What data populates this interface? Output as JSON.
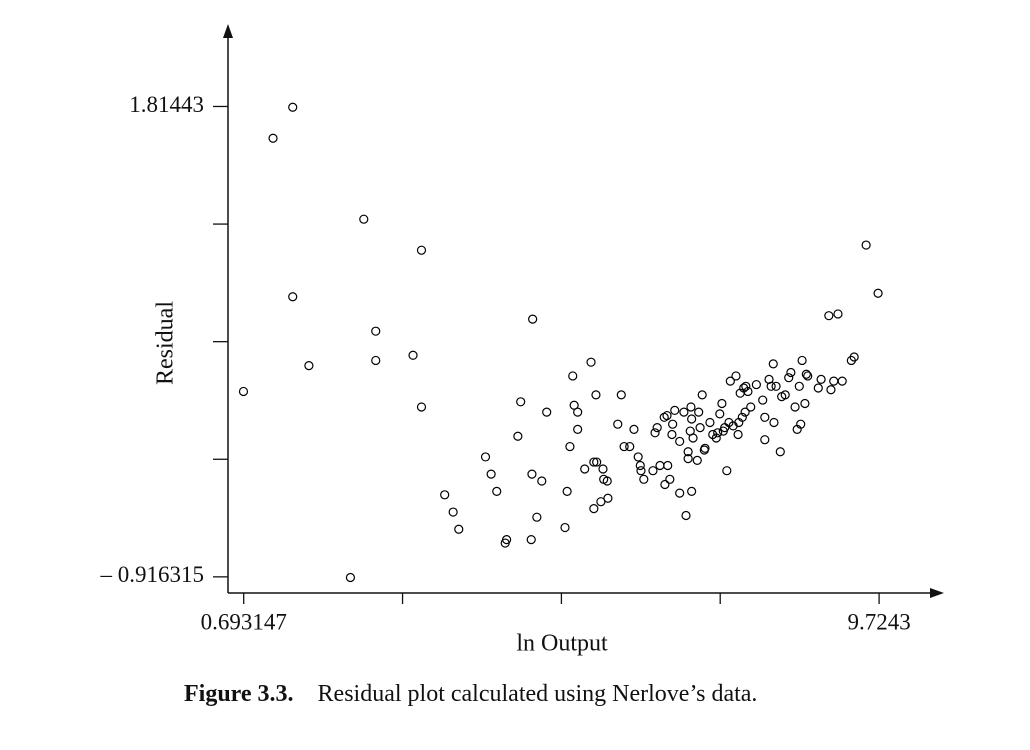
{
  "chart_data": {
    "type": "scatter",
    "xlabel": "ln Output",
    "ylabel": "Residual",
    "figure_label": "Figure 3.3.",
    "caption": "Residual plot calculated using Nerlove’s data.",
    "color": "#000000",
    "xlim": [
      0.47,
      10.59
    ],
    "ylim": [
      -1.01,
      2.27
    ],
    "xticks": [
      0.693147,
      {
        "value": 2.951,
        "label": null
      },
      {
        "value": 5.209,
        "label": null
      },
      {
        "value": 7.466,
        "label": null
      },
      9.7243
    ],
    "yticks": [
      1.81443,
      {
        "value": 1.13175,
        "label": null
      },
      {
        "value": 0.449057,
        "label": null
      },
      {
        "value": -0.233629,
        "label": null
      },
      {
        "value": -0.916315,
        "label": "– 0.916315"
      }
    ],
    "x": [
      0.69,
      1.11,
      1.39,
      1.39,
      1.62,
      2.21,
      2.4,
      2.57,
      2.57,
      3.1,
      3.22,
      3.22,
      3.55,
      3.67,
      3.75,
      4.13,
      4.21,
      4.29,
      4.41,
      4.43,
      4.59,
      4.63,
      4.78,
      4.79,
      4.8,
      4.86,
      4.93,
      5.0,
      5.26,
      5.29,
      5.33,
      5.37,
      5.39,
      5.44,
      5.44,
      5.54,
      5.63,
      5.67,
      5.67,
      5.7,
      5.71,
      5.77,
      5.8,
      5.81,
      5.86,
      5.87,
      6.01,
      6.06,
      6.1,
      6.18,
      6.24,
      6.3,
      6.33,
      6.34,
      6.38,
      6.51,
      6.54,
      6.57,
      6.61,
      6.67,
      6.68,
      6.71,
      6.72,
      6.75,
      6.78,
      6.79,
      6.82,
      6.89,
      6.89,
      6.95,
      6.98,
      7.01,
      7.01,
      7.04,
      7.05,
      7.06,
      7.06,
      7.08,
      7.14,
      7.16,
      7.18,
      7.21,
      7.24,
      7.25,
      7.32,
      7.36,
      7.41,
      7.43,
      7.46,
      7.49,
      7.51,
      7.53,
      7.56,
      7.59,
      7.61,
      7.65,
      7.69,
      7.72,
      7.73,
      7.75,
      7.78,
      7.8,
      7.82,
      7.83,
      7.86,
      7.9,
      7.98,
      8.07,
      8.1,
      8.1,
      8.16,
      8.19,
      8.22,
      8.23,
      8.26,
      8.32,
      8.34,
      8.39,
      8.44,
      8.47,
      8.53,
      8.56,
      8.59,
      8.61,
      8.63,
      8.67,
      8.69,
      8.71,
      8.86,
      8.9,
      9.01,
      9.04,
      9.08,
      9.14,
      9.2,
      9.33,
      9.37,
      9.54,
      9.71
    ],
    "values": [
      0.16,
      1.63,
      1.81,
      0.71,
      0.31,
      -0.92,
      1.16,
      0.51,
      0.34,
      0.37,
      0.98,
      0.07,
      -0.44,
      -0.54,
      -0.64,
      -0.22,
      -0.32,
      -0.42,
      -0.72,
      -0.7,
      -0.1,
      0.1,
      -0.7,
      -0.32,
      0.58,
      -0.57,
      -0.36,
      0.04,
      -0.63,
      -0.42,
      -0.16,
      0.25,
      0.08,
      -0.06,
      0.04,
      -0.29,
      0.33,
      -0.25,
      -0.52,
      0.14,
      -0.25,
      -0.48,
      -0.29,
      -0.35,
      -0.36,
      -0.46,
      -0.03,
      0.14,
      -0.16,
      -0.16,
      -0.06,
      -0.22,
      -0.27,
      -0.3,
      -0.35,
      -0.3,
      -0.08,
      -0.05,
      -0.27,
      0.01,
      -0.38,
      0.02,
      -0.27,
      -0.35,
      -0.09,
      -0.03,
      0.05,
      -0.43,
      -0.13,
      0.04,
      -0.56,
      -0.23,
      -0.19,
      -0.07,
      0.07,
      0.0,
      -0.42,
      -0.11,
      -0.24,
      0.04,
      -0.05,
      0.14,
      -0.18,
      -0.17,
      -0.02,
      -0.09,
      -0.11,
      -0.08,
      0.03,
      0.09,
      -0.07,
      -0.05,
      -0.3,
      -0.02,
      0.22,
      -0.04,
      0.25,
      -0.09,
      -0.02,
      0.15,
      0.01,
      0.18,
      0.04,
      0.19,
      0.16,
      0.07,
      0.2,
      0.11,
      -0.12,
      0.01,
      0.23,
      0.19,
      0.32,
      -0.02,
      0.19,
      -0.19,
      0.13,
      0.14,
      0.24,
      0.27,
      0.07,
      -0.06,
      0.19,
      -0.03,
      0.34,
      0.09,
      0.26,
      0.25,
      0.18,
      0.23,
      0.6,
      0.17,
      0.22,
      0.61,
      0.22,
      0.34,
      0.36,
      1.01,
      0.73
    ]
  }
}
